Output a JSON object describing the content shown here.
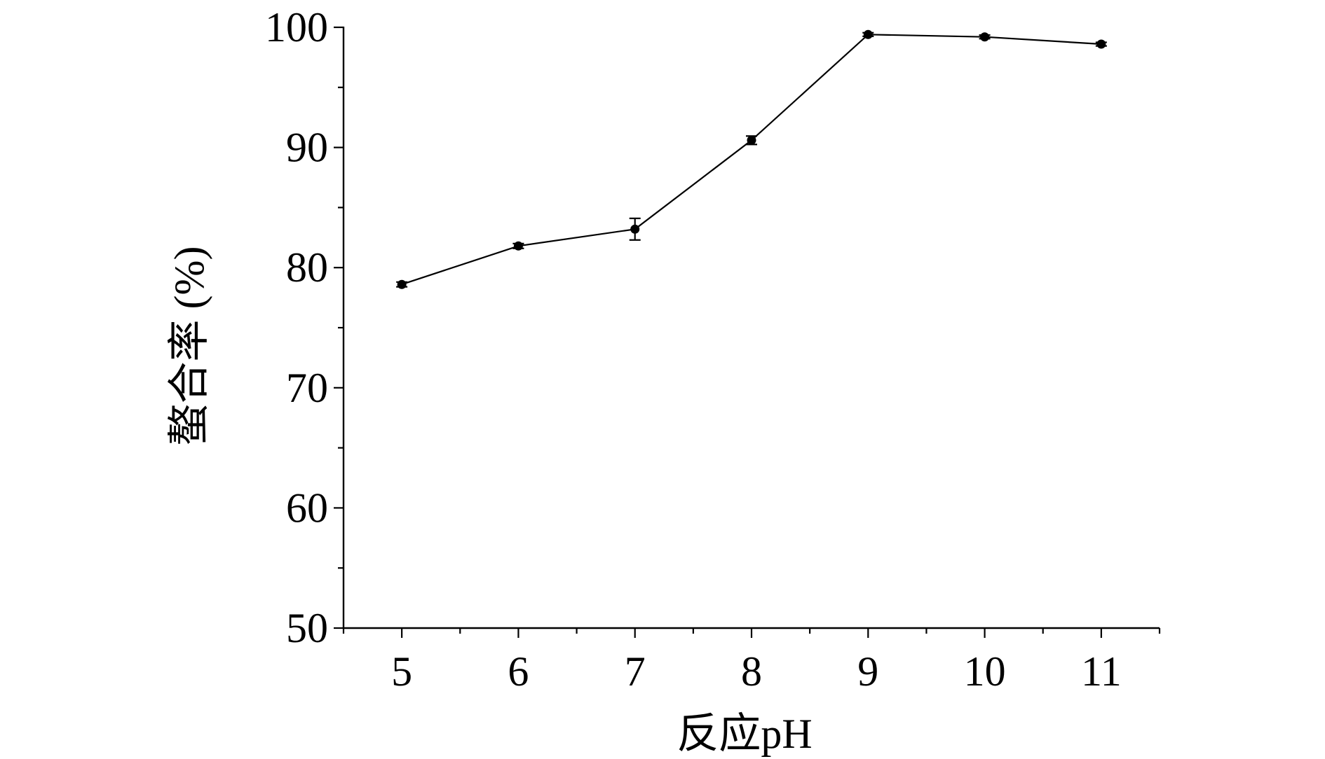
{
  "chart_data": {
    "type": "line",
    "title": "",
    "xlabel": "反应pH",
    "ylabel": "螯合率 (%)",
    "x": [
      5,
      6,
      7,
      8,
      9,
      10,
      11
    ],
    "xlim": [
      4.5,
      11.5
    ],
    "ylim": [
      50,
      100
    ],
    "x_ticks": [
      5,
      6,
      7,
      8,
      9,
      10,
      11
    ],
    "x_minor_ticks": [
      4.5,
      5.5,
      6.5,
      7.5,
      8.5,
      9.5,
      10.5,
      11.5
    ],
    "y_ticks": [
      50,
      60,
      70,
      80,
      90,
      100
    ],
    "y_minor_ticks": [
      55,
      65,
      75,
      85,
      95
    ],
    "grid": false,
    "legend": "none",
    "series": [
      {
        "values": [
          78.6,
          81.8,
          83.2,
          90.6,
          99.4,
          99.2,
          98.6
        ],
        "error": [
          0.2,
          0.2,
          0.9,
          0.35,
          0.15,
          0.15,
          0.15
        ],
        "marker": "circle",
        "color": "#000000"
      }
    ]
  }
}
